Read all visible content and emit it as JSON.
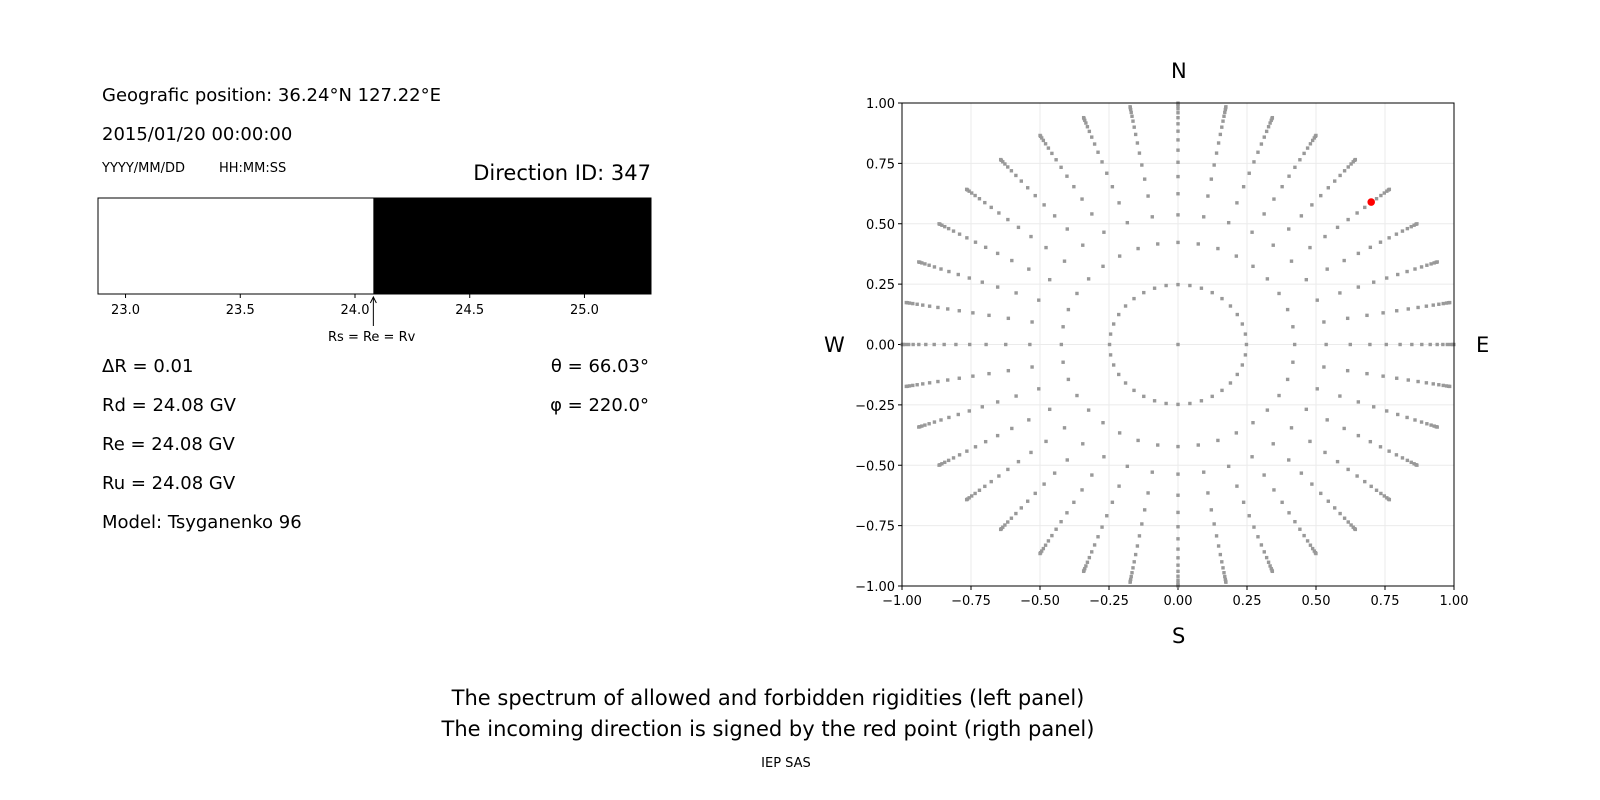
{
  "left_panel": {
    "position": "Geografic position: 36.24°N 127.22°E",
    "datetime": "2015/01/20 00:00:00",
    "date_format": "YYYY/MM/DD",
    "time_format": "HH:MM:SS",
    "direction_id": "Direction ID: 347",
    "arrow_label": "Rs = Re = Rv",
    "delta_r": "ΔR = 0.01",
    "rd": "Rd = 24.08 GV",
    "re": "Re = 24.08 GV",
    "ru": "Ru = 24.08 GV",
    "model": "Model: Tsyganenko 96",
    "theta": "θ = 66.03°",
    "phi": "φ = 220.0°"
  },
  "right_panel": {
    "north": "N",
    "south": "S",
    "west": "W",
    "east": "E"
  },
  "captions": {
    "line1": "The spectrum of allowed and forbidden rigidities (left panel)",
    "line2": "The incoming direction is signed by the red point (rigth panel)",
    "credit": "IEP SAS"
  },
  "chart_data": [
    {
      "type": "bar",
      "description_of_bands": "allowed (white) below cutoff, forbidden (black) above",
      "xlim": [
        22.88,
        25.29
      ],
      "xticks": [
        "23.0",
        "23.5",
        "24.0",
        "24.5",
        "25.0"
      ],
      "xtick_values": [
        23.0,
        23.5,
        24.0,
        24.5,
        25.0
      ],
      "cutoff": 24.08,
      "allowed_color": "#ffffff",
      "forbidden_color": "#000000",
      "arrow_at": 24.08
    },
    {
      "type": "scatter",
      "xlim": [
        -1,
        1
      ],
      "ylim": [
        -1,
        1
      ],
      "xticks": [
        "−1.00",
        "−0.75",
        "−0.50",
        "−0.25",
        "0.00",
        "0.25",
        "0.50",
        "0.75",
        "1.00"
      ],
      "yticks": [
        "−1.00",
        "−0.75",
        "−0.50",
        "−0.25",
        "0.00",
        "0.25",
        "0.50",
        "0.75",
        "1.00"
      ],
      "tick_values": [
        -1,
        -0.75,
        -0.5,
        -0.25,
        0,
        0.25,
        0.5,
        0.75,
        1
      ],
      "grid": true,
      "point_color": "#999999",
      "highlight_color": "#ff0000",
      "direction_grid": {
        "center": [
          0,
          0
        ],
        "azimuths_deg": [
          0,
          10,
          20,
          30,
          40,
          50,
          60,
          70,
          80,
          90,
          100,
          110,
          120,
          130,
          140,
          150,
          160,
          170,
          180,
          190,
          200,
          210,
          220,
          230,
          240,
          250,
          260,
          270,
          280,
          290,
          300,
          310,
          320,
          330,
          340,
          350
        ],
        "radii": [
          0.248,
          0.4227,
          0.5368,
          0.6242,
          0.6953,
          0.7546,
          0.8047,
          0.8472,
          0.8833,
          0.9138,
          0.9391,
          0.9596,
          0.9758,
          0.9877,
          0.9956,
          0.9995
        ]
      },
      "highlight_point": {
        "x": 0.7,
        "y": 0.59
      }
    }
  ]
}
